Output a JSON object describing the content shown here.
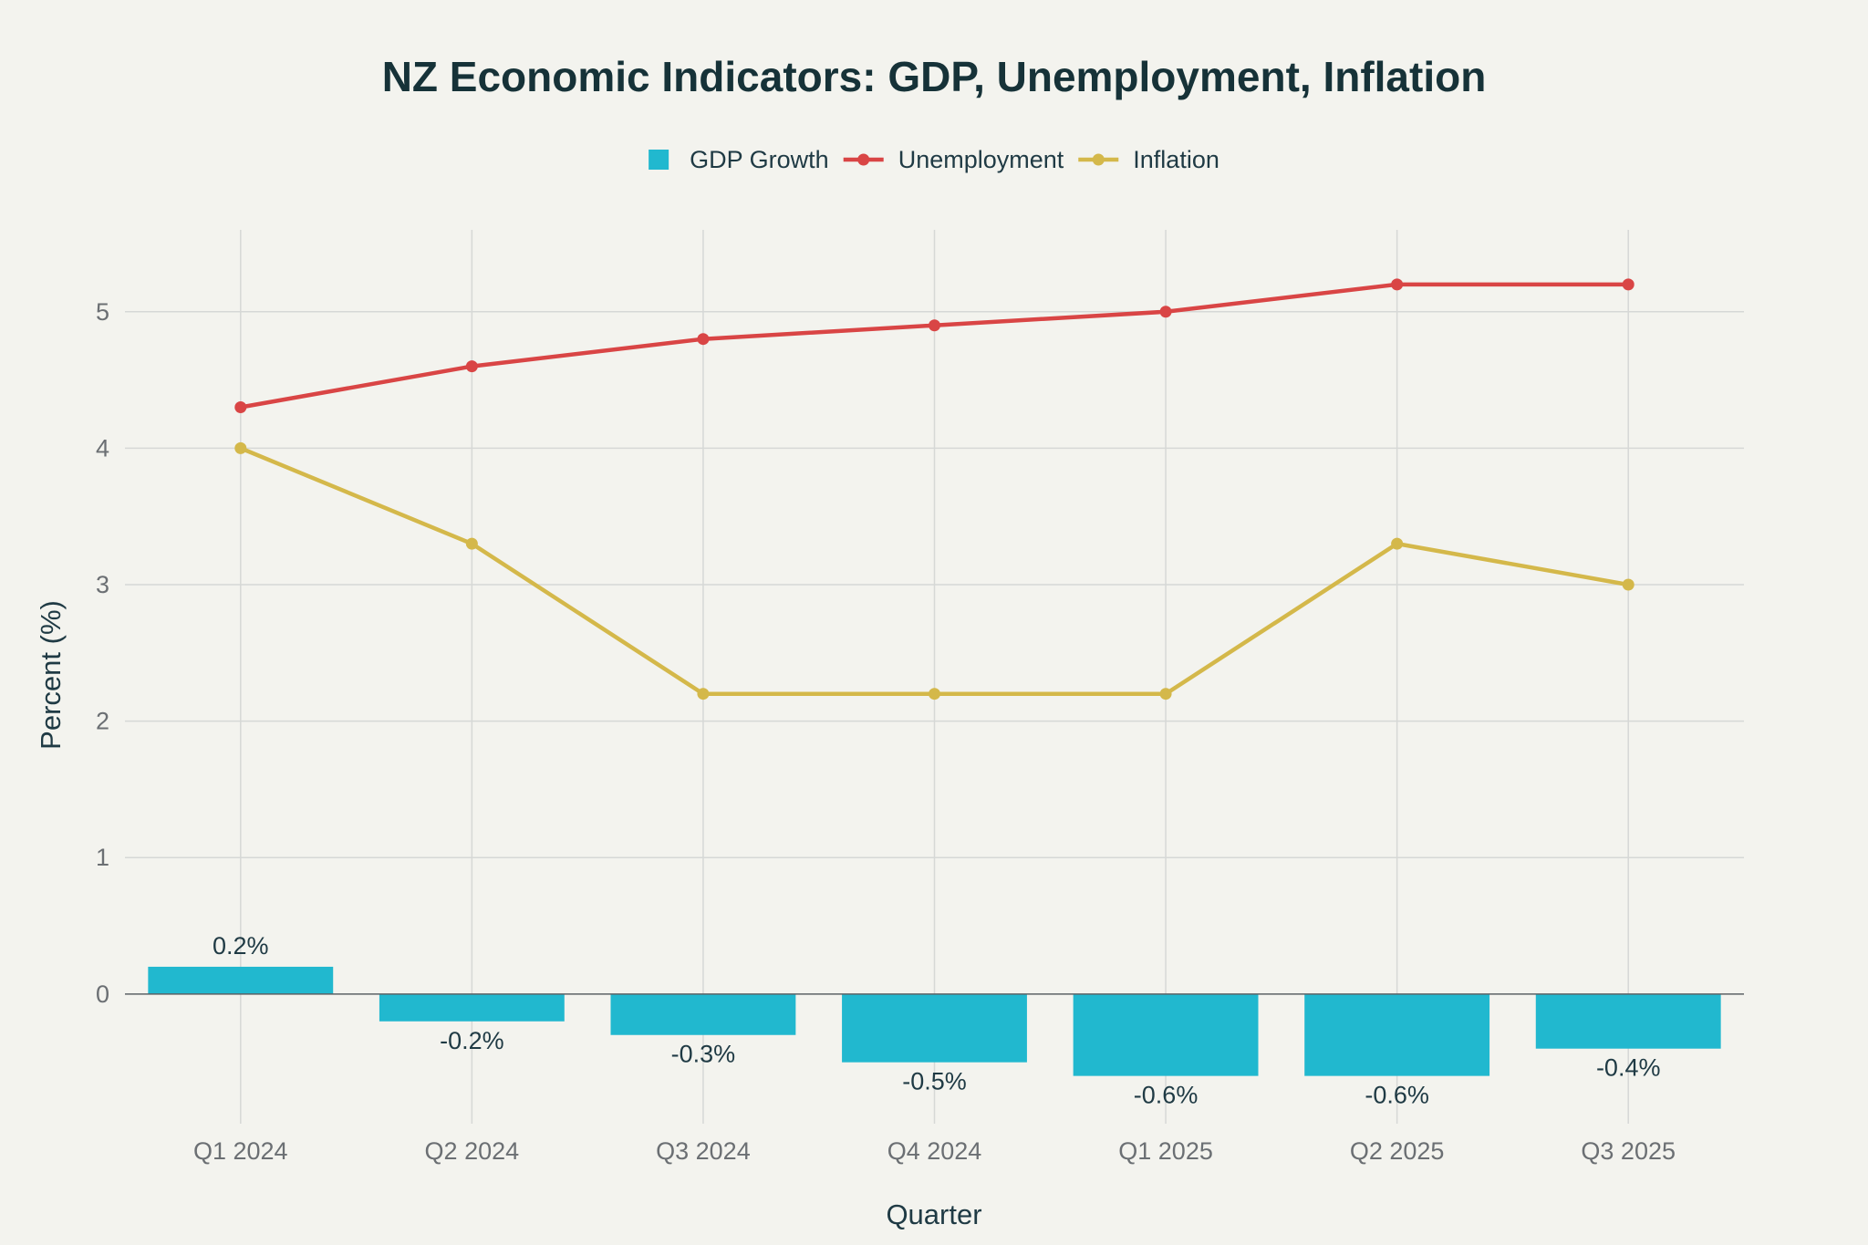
{
  "chart_data": {
    "type": "bar",
    "title": "NZ Economic Indicators: GDP, Unemployment, Inflation",
    "xlabel": "Quarter",
    "ylabel": "Percent (%)",
    "categories": [
      "Q1 2024",
      "Q2 2024",
      "Q3 2024",
      "Q4 2024",
      "Q1 2025",
      "Q2 2025",
      "Q3 2025"
    ],
    "ylim": [
      -0.95,
      5.6
    ],
    "yticks": [
      0,
      1,
      2,
      3,
      4,
      5
    ],
    "grid": true,
    "legend_position": "top-center",
    "series": [
      {
        "name": "GDP Growth",
        "type": "bar",
        "color": "#21b8cf",
        "values": [
          0.2,
          -0.2,
          -0.3,
          -0.5,
          -0.6,
          -0.6,
          -0.4
        ],
        "labels": [
          "0.2%",
          "-0.2%",
          "-0.3%",
          "-0.5%",
          "-0.6%",
          "-0.6%",
          "-0.4%"
        ]
      },
      {
        "name": "Unemployment",
        "type": "line",
        "color": "#d94545",
        "values": [
          4.3,
          4.6,
          4.8,
          4.9,
          5.0,
          5.2,
          5.2
        ]
      },
      {
        "name": "Inflation",
        "type": "line",
        "color": "#d4b84a",
        "values": [
          4.0,
          3.3,
          2.2,
          2.2,
          2.2,
          3.3,
          3.0
        ]
      }
    ]
  }
}
